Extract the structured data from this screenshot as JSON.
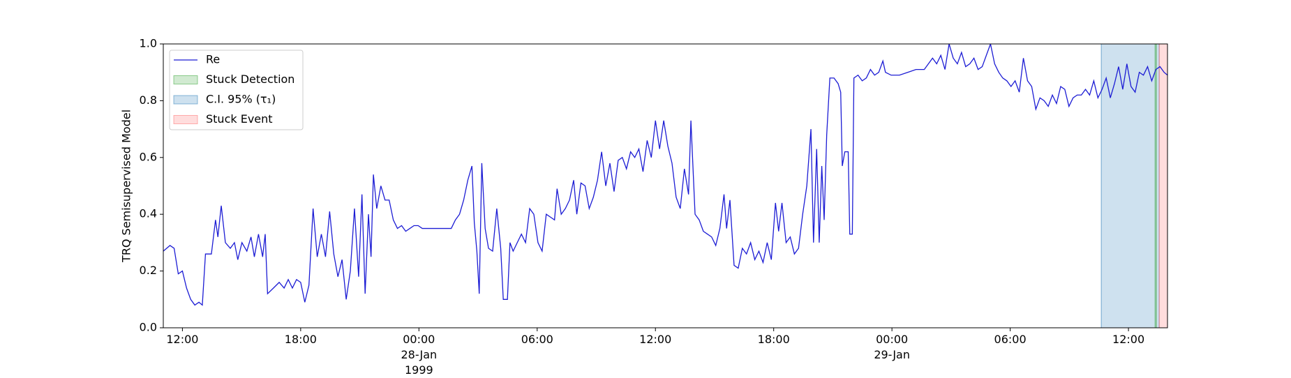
{
  "chart_data": {
    "type": "line",
    "ylabel": "TRQ Semisupervised Model",
    "xlim": [
      11.03,
      61.98
    ],
    "ylim": [
      0,
      1
    ],
    "xticks": [
      {
        "value": 12,
        "label": "12:00"
      },
      {
        "value": 18,
        "label": "18:00"
      },
      {
        "value": 24,
        "label": "00:00\n28-Jan\n1999"
      },
      {
        "value": 30,
        "label": "06:00"
      },
      {
        "value": 36,
        "label": "12:00"
      },
      {
        "value": 42,
        "label": "18:00"
      },
      {
        "value": 48,
        "label": "00:00\n29-Jan"
      },
      {
        "value": 54,
        "label": "06:00"
      },
      {
        "value": 60,
        "label": "12:00"
      }
    ],
    "yticks": [
      {
        "value": 0,
        "label": "0.0"
      },
      {
        "value": 0.2,
        "label": "0.2"
      },
      {
        "value": 0.4,
        "label": "0.4"
      },
      {
        "value": 0.6,
        "label": "0.6"
      },
      {
        "value": 0.8,
        "label": "0.8"
      },
      {
        "value": 1,
        "label": "1.0"
      }
    ],
    "legend": "upper left",
    "series": [
      {
        "name": "Re",
        "color": "#1c1cd4",
        "x": [
          11.03,
          11.37,
          11.58,
          11.79,
          12.0,
          12.21,
          12.42,
          12.63,
          12.84,
          13.01,
          13.17,
          13.47,
          13.68,
          13.8,
          13.97,
          14.18,
          14.43,
          14.64,
          14.81,
          15.02,
          15.27,
          15.48,
          15.65,
          15.86,
          16.07,
          16.2,
          16.32,
          16.62,
          16.91,
          17.16,
          17.37,
          17.58,
          17.79,
          18.0,
          18.21,
          18.42,
          18.63,
          18.84,
          19.05,
          19.26,
          19.47,
          19.68,
          19.89,
          20.1,
          20.31,
          20.52,
          20.73,
          20.94,
          21.11,
          21.27,
          21.44,
          21.57,
          21.69,
          21.86,
          22.07,
          22.28,
          22.49,
          22.7,
          22.91,
          23.12,
          23.33,
          23.54,
          23.75,
          23.96,
          24.17,
          24.59,
          25.22,
          25.64,
          25.85,
          26.06,
          26.27,
          26.48,
          26.69,
          26.81,
          26.94,
          27.06,
          27.19,
          27.36,
          27.53,
          27.74,
          27.95,
          28.15,
          28.28,
          28.49,
          28.62,
          28.78,
          28.99,
          29.2,
          29.41,
          29.62,
          29.83,
          30.04,
          30.25,
          30.46,
          30.67,
          30.88,
          31.01,
          31.22,
          31.43,
          31.64,
          31.85,
          32.01,
          32.22,
          32.43,
          32.64,
          32.85,
          33.06,
          33.27,
          33.48,
          33.69,
          33.9,
          34.11,
          34.32,
          34.53,
          34.74,
          34.95,
          35.16,
          35.37,
          35.58,
          35.79,
          36.0,
          36.21,
          36.42,
          36.63,
          36.84,
          37.05,
          37.26,
          37.47,
          37.68,
          37.8,
          38.01,
          38.22,
          38.43,
          38.64,
          38.85,
          39.06,
          39.27,
          39.48,
          39.61,
          39.78,
          39.99,
          40.2,
          40.41,
          40.62,
          40.83,
          41.04,
          41.25,
          41.46,
          41.67,
          41.88,
          42.09,
          42.25,
          42.42,
          42.63,
          42.84,
          43.05,
          43.26,
          43.47,
          43.68,
          43.89,
          44.02,
          44.18,
          44.31,
          44.44,
          44.56,
          44.69,
          44.85,
          45.06,
          45.27,
          45.4,
          45.48,
          45.61,
          45.78,
          45.86,
          45.99,
          46.07,
          46.28,
          46.49,
          46.7,
          46.91,
          47.12,
          47.33,
          47.54,
          47.67,
          47.96,
          48.38,
          48.8,
          49.22,
          49.64,
          50.06,
          50.27,
          50.48,
          50.69,
          50.9,
          51.11,
          51.32,
          51.53,
          51.74,
          51.95,
          52.16,
          52.37,
          52.58,
          52.79,
          53.0,
          53.21,
          53.42,
          53.62,
          53.83,
          54.04,
          54.25,
          54.46,
          54.67,
          54.88,
          55.09,
          55.3,
          55.51,
          55.72,
          55.93,
          56.14,
          56.35,
          56.56,
          56.77,
          56.98,
          57.19,
          57.4,
          57.61,
          57.82,
          58.03,
          58.24,
          58.45,
          58.66,
          58.87,
          59.08,
          59.29,
          59.5,
          59.71,
          59.92,
          60.13,
          60.34,
          60.55,
          60.76,
          60.97,
          61.18,
          61.39,
          61.6,
          61.81,
          61.98
        ],
        "values": [
          0.27,
          0.29,
          0.28,
          0.19,
          0.2,
          0.14,
          0.1,
          0.08,
          0.09,
          0.08,
          0.26,
          0.26,
          0.38,
          0.32,
          0.43,
          0.3,
          0.28,
          0.3,
          0.24,
          0.3,
          0.27,
          0.32,
          0.25,
          0.33,
          0.25,
          0.33,
          0.12,
          0.14,
          0.16,
          0.14,
          0.17,
          0.14,
          0.17,
          0.16,
          0.09,
          0.15,
          0.42,
          0.25,
          0.33,
          0.25,
          0.41,
          0.26,
          0.18,
          0.24,
          0.1,
          0.2,
          0.42,
          0.18,
          0.47,
          0.12,
          0.4,
          0.25,
          0.54,
          0.42,
          0.5,
          0.45,
          0.45,
          0.38,
          0.35,
          0.36,
          0.34,
          0.35,
          0.36,
          0.36,
          0.35,
          0.35,
          0.35,
          0.35,
          0.38,
          0.4,
          0.45,
          0.52,
          0.57,
          0.37,
          0.27,
          0.12,
          0.58,
          0.35,
          0.28,
          0.27,
          0.42,
          0.28,
          0.1,
          0.1,
          0.3,
          0.27,
          0.3,
          0.33,
          0.3,
          0.42,
          0.4,
          0.3,
          0.27,
          0.4,
          0.39,
          0.38,
          0.49,
          0.4,
          0.42,
          0.45,
          0.52,
          0.4,
          0.51,
          0.5,
          0.42,
          0.46,
          0.52,
          0.62,
          0.5,
          0.58,
          0.48,
          0.59,
          0.6,
          0.56,
          0.62,
          0.6,
          0.63,
          0.55,
          0.66,
          0.6,
          0.73,
          0.63,
          0.73,
          0.64,
          0.58,
          0.46,
          0.42,
          0.56,
          0.47,
          0.73,
          0.4,
          0.38,
          0.34,
          0.33,
          0.32,
          0.29,
          0.35,
          0.47,
          0.35,
          0.45,
          0.22,
          0.21,
          0.28,
          0.26,
          0.3,
          0.24,
          0.27,
          0.23,
          0.3,
          0.24,
          0.44,
          0.34,
          0.44,
          0.3,
          0.32,
          0.26,
          0.28,
          0.4,
          0.5,
          0.7,
          0.3,
          0.63,
          0.3,
          0.57,
          0.38,
          0.68,
          0.88,
          0.88,
          0.86,
          0.83,
          0.57,
          0.62,
          0.62,
          0.33,
          0.33,
          0.88,
          0.89,
          0.87,
          0.88,
          0.91,
          0.89,
          0.9,
          0.94,
          0.9,
          0.89,
          0.89,
          0.9,
          0.91,
          0.91,
          0.95,
          0.93,
          0.96,
          0.91,
          1.0,
          0.95,
          0.93,
          0.97,
          0.92,
          0.93,
          0.95,
          0.91,
          0.92,
          0.96,
          1.0,
          0.93,
          0.9,
          0.88,
          0.87,
          0.85,
          0.87,
          0.83,
          0.95,
          0.87,
          0.85,
          0.77,
          0.81,
          0.8,
          0.78,
          0.82,
          0.79,
          0.85,
          0.84,
          0.78,
          0.81,
          0.82,
          0.82,
          0.84,
          0.82,
          0.87,
          0.81,
          0.84,
          0.88,
          0.81,
          0.86,
          0.92,
          0.84,
          0.93,
          0.85,
          0.83,
          0.9,
          0.89,
          0.92,
          0.87,
          0.91,
          0.92,
          0.9,
          0.89
        ]
      }
    ],
    "spans": [
      {
        "name": "Stuck Detection",
        "color": "#2ca02c",
        "range": [
          61.35,
          61.42
        ]
      },
      {
        "name": "C.I. 95% (τ₁)",
        "color": "#1f77b4",
        "range": [
          58.62,
          61.56
        ]
      },
      {
        "name": "Stuck Event",
        "color": "#ff6666",
        "range": [
          61.56,
          61.98
        ]
      }
    ]
  }
}
